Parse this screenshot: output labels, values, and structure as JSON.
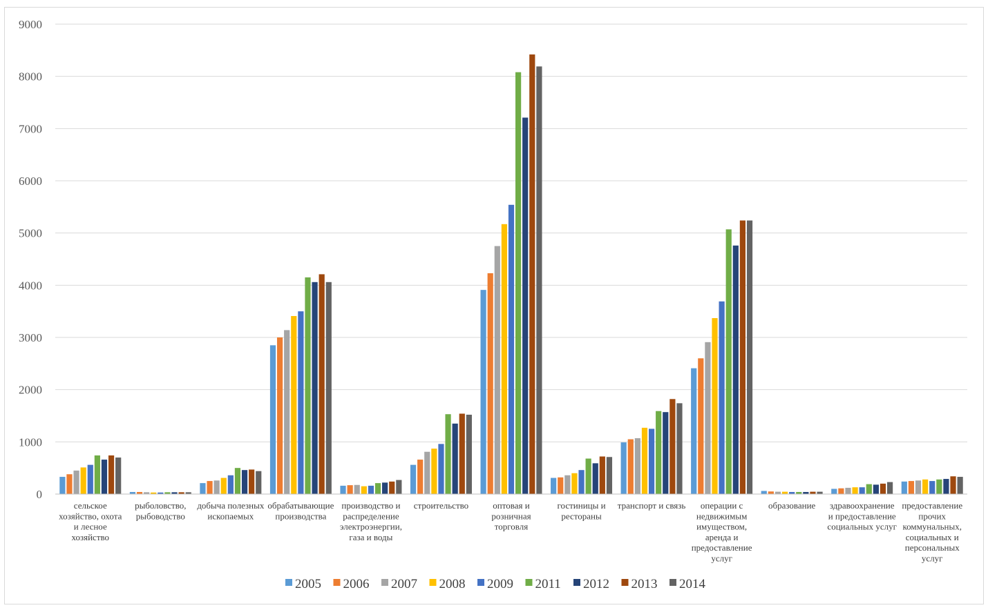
{
  "chart_data": {
    "type": "bar",
    "title": "",
    "xlabel": "",
    "ylabel": "",
    "ylim": [
      0,
      9000
    ],
    "yticks": [
      0,
      1000,
      2000,
      3000,
      4000,
      5000,
      6000,
      7000,
      8000,
      9000
    ],
    "grid": true,
    "legend_position": "bottom",
    "categories": [
      [
        "сельское",
        "хозяйство, охота",
        "и лесное",
        "хозяйство"
      ],
      [
        "рыболовство,",
        "рыбоводство"
      ],
      [
        "добыча полезных",
        "ископаемых"
      ],
      [
        "обрабатывающие",
        "производства"
      ],
      [
        "производство и",
        "распределение",
        "электроэнергии,",
        "газа и воды"
      ],
      [
        "строительство"
      ],
      [
        "оптовая и",
        "розничная",
        "торговля"
      ],
      [
        "гостиницы и",
        "рестораны"
      ],
      [
        "транспорт и связь"
      ],
      [
        "операции с",
        "недвижимым",
        "имуществом,",
        "аренда и",
        "предоставление",
        "услуг"
      ],
      [
        "образование"
      ],
      [
        "здравоохранение",
        "и предоставление",
        "социальных услуг"
      ],
      [
        "предоставление",
        "прочих",
        "коммунальных,",
        "социальных и",
        "персональных",
        "услуг"
      ]
    ],
    "series": [
      {
        "name": "2005",
        "color": "#5b9bd5",
        "values": [
          330,
          40,
          210,
          2850,
          160,
          560,
          3910,
          310,
          990,
          2410,
          60,
          100,
          240
        ]
      },
      {
        "name": "2006",
        "color": "#ed7d31",
        "values": [
          380,
          40,
          250,
          3000,
          170,
          660,
          4230,
          320,
          1050,
          2600,
          50,
          110,
          250
        ]
      },
      {
        "name": "2007",
        "color": "#a5a5a5",
        "values": [
          450,
          35,
          260,
          3140,
          175,
          810,
          4750,
          360,
          1070,
          2910,
          45,
          120,
          260
        ]
      },
      {
        "name": "2008",
        "color": "#ffc000",
        "values": [
          510,
          30,
          310,
          3410,
          150,
          870,
          5170,
          400,
          1270,
          3370,
          45,
          130,
          280
        ]
      },
      {
        "name": "2009",
        "color": "#4472c4",
        "values": [
          560,
          30,
          360,
          3500,
          160,
          960,
          5540,
          460,
          1250,
          3690,
          40,
          130,
          250
        ]
      },
      {
        "name": "2011",
        "color": "#70ad47",
        "values": [
          740,
          35,
          500,
          4150,
          210,
          1530,
          8080,
          680,
          1590,
          5070,
          40,
          190,
          280
        ]
      },
      {
        "name": "2012",
        "color": "#264478",
        "values": [
          660,
          35,
          460,
          4060,
          220,
          1350,
          7210,
          590,
          1570,
          4760,
          40,
          180,
          290
        ]
      },
      {
        "name": "2013",
        "color": "#9e480e",
        "values": [
          740,
          35,
          470,
          4210,
          240,
          1540,
          8420,
          720,
          1820,
          5240,
          45,
          200,
          340
        ]
      },
      {
        "name": "2014",
        "color": "#636363",
        "values": [
          700,
          35,
          440,
          4060,
          270,
          1520,
          8190,
          710,
          1740,
          5240,
          45,
          230,
          330
        ]
      }
    ]
  }
}
